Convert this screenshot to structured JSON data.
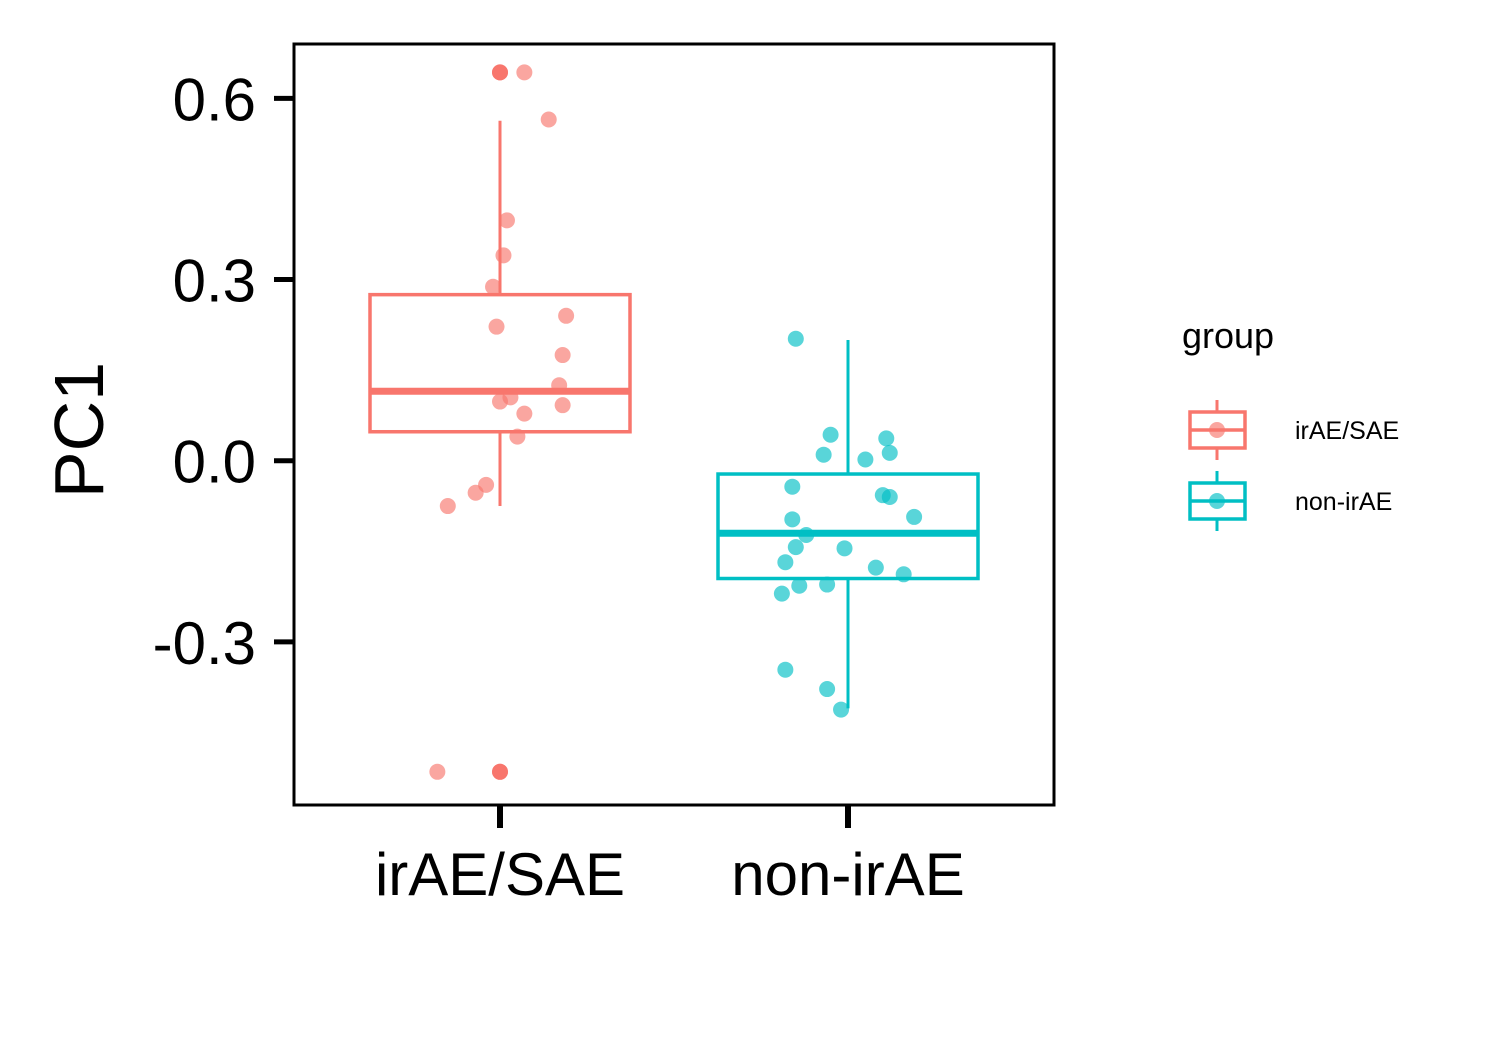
{
  "chart_data": {
    "type": "box",
    "categories": [
      "irAE/SAE",
      "non-irAE"
    ],
    "ylabel": "PC1",
    "xlabel": "",
    "ylim": [
      -0.57,
      0.69
    ],
    "yticks": [
      0.6,
      0.3,
      0.0,
      -0.3
    ],
    "ytick_labels": [
      "0.6",
      "0.3",
      "0.0",
      "-0.3"
    ],
    "legend": {
      "title": "group",
      "position": "right",
      "entries": [
        "irAE/SAE",
        "non-irAE"
      ]
    },
    "series": [
      {
        "name": "irAE/SAE",
        "color": "#F8766D",
        "box": {
          "lower_whisker": -0.075,
          "q1": 0.048,
          "median": 0.115,
          "q3": 0.275,
          "upper_whisker": 0.563
        },
        "outliers": [
          0.643,
          -0.515
        ],
        "points": [
          0.643,
          0.643,
          0.565,
          0.398,
          0.34,
          0.288,
          0.24,
          0.222,
          0.175,
          0.125,
          0.105,
          0.098,
          0.092,
          0.078,
          0.04,
          -0.04,
          -0.053,
          -0.075,
          -0.515,
          -0.515
        ],
        "jitter": [
          0.0,
          0.07,
          0.14,
          0.02,
          0.01,
          -0.02,
          0.19,
          -0.01,
          0.18,
          0.17,
          0.03,
          0.0,
          0.18,
          0.07,
          0.05,
          -0.04,
          -0.07,
          -0.15,
          -0.18,
          0.0
        ]
      },
      {
        "name": "non-irAE",
        "color": "#00BFC4",
        "box": {
          "lower_whisker": -0.41,
          "q1": -0.195,
          "median": -0.12,
          "q3": -0.022,
          "upper_whisker": 0.2
        },
        "outliers": [],
        "points": [
          0.202,
          0.043,
          0.037,
          0.013,
          0.01,
          0.002,
          -0.043,
          -0.057,
          -0.06,
          -0.093,
          -0.097,
          -0.123,
          -0.143,
          -0.145,
          -0.168,
          -0.177,
          -0.188,
          -0.205,
          -0.207,
          -0.22,
          -0.346,
          -0.378,
          -0.412
        ],
        "jitter": [
          -0.15,
          -0.05,
          0.11,
          0.12,
          -0.07,
          0.05,
          -0.16,
          0.1,
          0.12,
          0.19,
          -0.16,
          -0.12,
          -0.15,
          -0.01,
          -0.18,
          0.08,
          0.16,
          -0.06,
          -0.14,
          -0.19,
          -0.18,
          -0.06,
          -0.02
        ]
      }
    ]
  }
}
